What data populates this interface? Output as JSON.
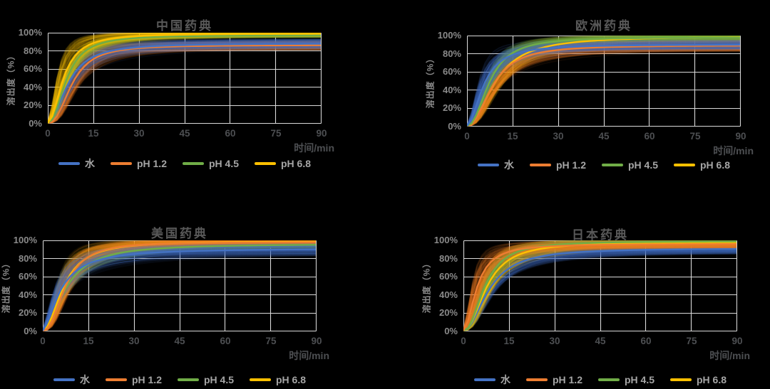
{
  "page": {
    "background": "#000000"
  },
  "colors": {
    "water": "#4472C4",
    "ph_1_2": "#ED7D31",
    "ph_4_5": "#70AD47",
    "ph_6_8": "#FFC000",
    "gridline": "#D9D9D9",
    "title_text": "#595959",
    "y_tick_text": "#8A8A8A",
    "x_tick_text": "#4D4F52",
    "legend_text": "#A6A6A6"
  },
  "axis": {
    "x_label": "时间/min",
    "y_label": "溶出度（%）",
    "x_ticks": [
      "0",
      "15",
      "30",
      "45",
      "60",
      "75",
      "90"
    ],
    "y_ticks": [
      "100%",
      "80%",
      "60%",
      "40%",
      "20%",
      "0%"
    ]
  },
  "legend": [
    {
      "name": "水",
      "color": "#4472C4"
    },
    {
      "name": "pH 1.2",
      "color": "#ED7D31"
    },
    {
      "name": "pH 4.5",
      "color": "#70AD47"
    },
    {
      "name": "pH 6.8",
      "color": "#FFC000"
    }
  ],
  "chart_data": [
    {
      "type": "line",
      "title": "中国药典",
      "xlabel": "时间/min",
      "ylabel": "溶出度（%）",
      "xlim": [
        0,
        90
      ],
      "ylim": [
        0,
        100
      ],
      "grid": true,
      "legend_position": "bottom",
      "x": [
        0,
        2,
        5,
        10,
        15,
        20,
        30,
        45,
        60,
        75,
        90
      ],
      "draw_order": [
        1,
        0,
        2,
        3
      ],
      "series": [
        {
          "name": "水",
          "color": "#4472C4",
          "values": [
            0,
            7,
            31,
            61,
            74,
            80,
            85,
            87,
            88,
            88,
            89
          ],
          "band": {
            "t50": 6.8,
            "h": 2.0,
            "plateau": 89,
            "t50_sd": 2.5,
            "h_sd": 0.45,
            "plateau_sd": 5
          }
        },
        {
          "name": "pH 1.2",
          "color": "#ED7D31",
          "values": [
            0,
            3,
            21,
            55,
            71,
            78,
            84,
            86,
            86,
            87,
            87
          ],
          "band": {
            "t50": 8.0,
            "h": 2.4,
            "plateau": 87,
            "t50_sd": 2.6,
            "h_sd": 0.5,
            "plateau_sd": 5
          }
        },
        {
          "name": "pH 4.5",
          "color": "#70AD47",
          "values": [
            0,
            8,
            38,
            73,
            86,
            91,
            95,
            97,
            97,
            98,
            98
          ],
          "band": {
            "t50": 6.2,
            "h": 2.2,
            "plateau": 98,
            "t50_sd": 1.2,
            "h_sd": 0.3,
            "plateau_sd": 2
          }
        },
        {
          "name": "pH 6.8",
          "color": "#FFC000",
          "values": [
            0,
            13,
            48,
            79,
            89,
            94,
            97,
            99,
            99,
            100,
            100
          ],
          "band": {
            "t50": 5.2,
            "h": 2.0,
            "plateau": 100,
            "t50_sd": 2.2,
            "h_sd": 0.5,
            "plateau_sd": 3
          }
        }
      ]
    },
    {
      "type": "line",
      "title": "欧洲药典",
      "xlabel": "时间/min",
      "ylabel": "溶出度（%）",
      "xlim": [
        0,
        90
      ],
      "ylim": [
        0,
        100
      ],
      "grid": true,
      "legend_position": "bottom",
      "x": [
        0,
        2,
        5,
        10,
        15,
        20,
        30,
        45,
        60,
        75,
        90
      ],
      "draw_order": [
        3,
        1,
        2,
        0
      ],
      "series": [
        {
          "name": "水",
          "color": "#4472C4",
          "values": [
            0,
            12,
            40,
            69,
            79,
            84,
            88,
            89,
            90,
            90,
            91
          ],
          "band": {
            "t50": 5.5,
            "h": 1.9,
            "plateau": 91,
            "t50_sd": 2.0,
            "h_sd": 0.4,
            "plateau_sd": 5
          }
        },
        {
          "name": "pH 1.2",
          "color": "#ED7D31",
          "values": [
            0,
            4,
            22,
            53,
            70,
            78,
            85,
            88,
            89,
            89,
            90
          ],
          "band": {
            "t50": 8.5,
            "h": 2.2,
            "plateau": 90,
            "t50_sd": 2.4,
            "h_sd": 0.5,
            "plateau_sd": 6
          }
        },
        {
          "name": "pH 4.5",
          "color": "#70AD47",
          "values": [
            0,
            6,
            28,
            65,
            81,
            89,
            95,
            97,
            98,
            98,
            99
          ],
          "band": {
            "t50": 7.5,
            "h": 2.2,
            "plateau": 99,
            "t50_sd": 1.4,
            "h_sd": 0.3,
            "plateau_sd": 3
          }
        },
        {
          "name": "pH 6.8",
          "color": "#FFC000",
          "values": [
            0,
            4,
            22,
            53,
            72,
            82,
            92,
            97,
            98,
            99,
            100
          ],
          "band": {
            "t50": 9.5,
            "h": 2.0,
            "plateau": 100,
            "t50_sd": 2.8,
            "h_sd": 0.45,
            "plateau_sd": 5
          }
        }
      ]
    },
    {
      "type": "line",
      "title": "美国药典",
      "xlabel": "时间/min",
      "ylabel": "溶出度（%）",
      "xlim": [
        0,
        90
      ],
      "ylim": [
        0,
        100
      ],
      "grid": true,
      "legend_position": "bottom",
      "x": [
        0,
        2,
        5,
        10,
        15,
        20,
        30,
        45,
        60,
        75,
        90
      ],
      "draw_order": [
        2,
        3,
        1,
        0
      ],
      "series": [
        {
          "name": "水",
          "color": "#4472C4",
          "values": [
            0,
            14,
            40,
            64,
            76,
            81,
            86,
            90,
            91,
            92,
            92
          ],
          "band": {
            "t50": 6.0,
            "h": 1.6,
            "plateau": 92,
            "t50_sd": 2.2,
            "h_sd": 0.4,
            "plateau_sd": 6
          }
        },
        {
          "name": "pH 1.2",
          "color": "#ED7D31",
          "values": [
            0,
            5,
            28,
            65,
            82,
            90,
            95,
            98,
            98,
            99,
            99
          ],
          "band": {
            "t50": 7.5,
            "h": 2.3,
            "plateau": 99,
            "t50_sd": 2.4,
            "h_sd": 0.5,
            "plateau_sd": 4
          }
        },
        {
          "name": "pH 4.5",
          "color": "#70AD47",
          "values": [
            0,
            8,
            30,
            60,
            75,
            83,
            90,
            94,
            96,
            96,
            97
          ],
          "band": {
            "t50": 7.8,
            "h": 1.8,
            "plateau": 97,
            "t50_sd": 1.6,
            "h_sd": 0.35,
            "plateau_sd": 3
          }
        },
        {
          "name": "pH 6.8",
          "color": "#FFC000",
          "values": [
            0,
            8,
            34,
            67,
            82,
            89,
            95,
            98,
            99,
            99,
            99
          ],
          "band": {
            "t50": 7.0,
            "h": 2.0,
            "plateau": 100,
            "t50_sd": 2.4,
            "h_sd": 0.5,
            "plateau_sd": 4
          }
        }
      ]
    },
    {
      "type": "line",
      "title": "日本药典",
      "xlabel": "时间/min",
      "ylabel": "溶出度（%）",
      "xlim": [
        0,
        90
      ],
      "ylim": [
        0,
        100
      ],
      "grid": true,
      "legend_position": "bottom",
      "x": [
        0,
        2,
        5,
        10,
        15,
        20,
        30,
        45,
        60,
        75,
        90
      ],
      "draw_order": [
        0,
        3,
        2,
        1
      ],
      "series": [
        {
          "name": "水",
          "color": "#4472C4",
          "values": [
            0,
            5,
            24,
            53,
            70,
            78,
            85,
            89,
            90,
            91,
            92
          ],
          "band": {
            "t50": 8.5,
            "h": 2.0,
            "plateau": 92,
            "t50_sd": 2.4,
            "h_sd": 0.45,
            "plateau_sd": 5
          }
        },
        {
          "name": "pH 1.2",
          "color": "#ED7D31",
          "values": [
            0,
            17,
            53,
            80,
            88,
            92,
            95,
            96,
            96,
            97,
            97
          ],
          "band": {
            "t50": 4.5,
            "h": 1.9,
            "plateau": 97,
            "t50_sd": 1.8,
            "h_sd": 0.45,
            "plateau_sd": 4
          }
        },
        {
          "name": "pH 4.5",
          "color": "#70AD47",
          "values": [
            0,
            6,
            31,
            67,
            83,
            90,
            96,
            98,
            99,
            99,
            100
          ],
          "band": {
            "t50": 7.2,
            "h": 2.2,
            "plateau": 100,
            "t50_sd": 1.4,
            "h_sd": 0.3,
            "plateau_sd": 3
          }
        },
        {
          "name": "pH 6.8",
          "color": "#FFC000",
          "values": [
            0,
            5,
            28,
            62,
            79,
            87,
            93,
            96,
            97,
            98,
            99
          ],
          "band": {
            "t50": 7.8,
            "h": 2.1,
            "plateau": 99,
            "t50_sd": 2.6,
            "h_sd": 0.5,
            "plateau_sd": 5
          }
        }
      ]
    }
  ]
}
